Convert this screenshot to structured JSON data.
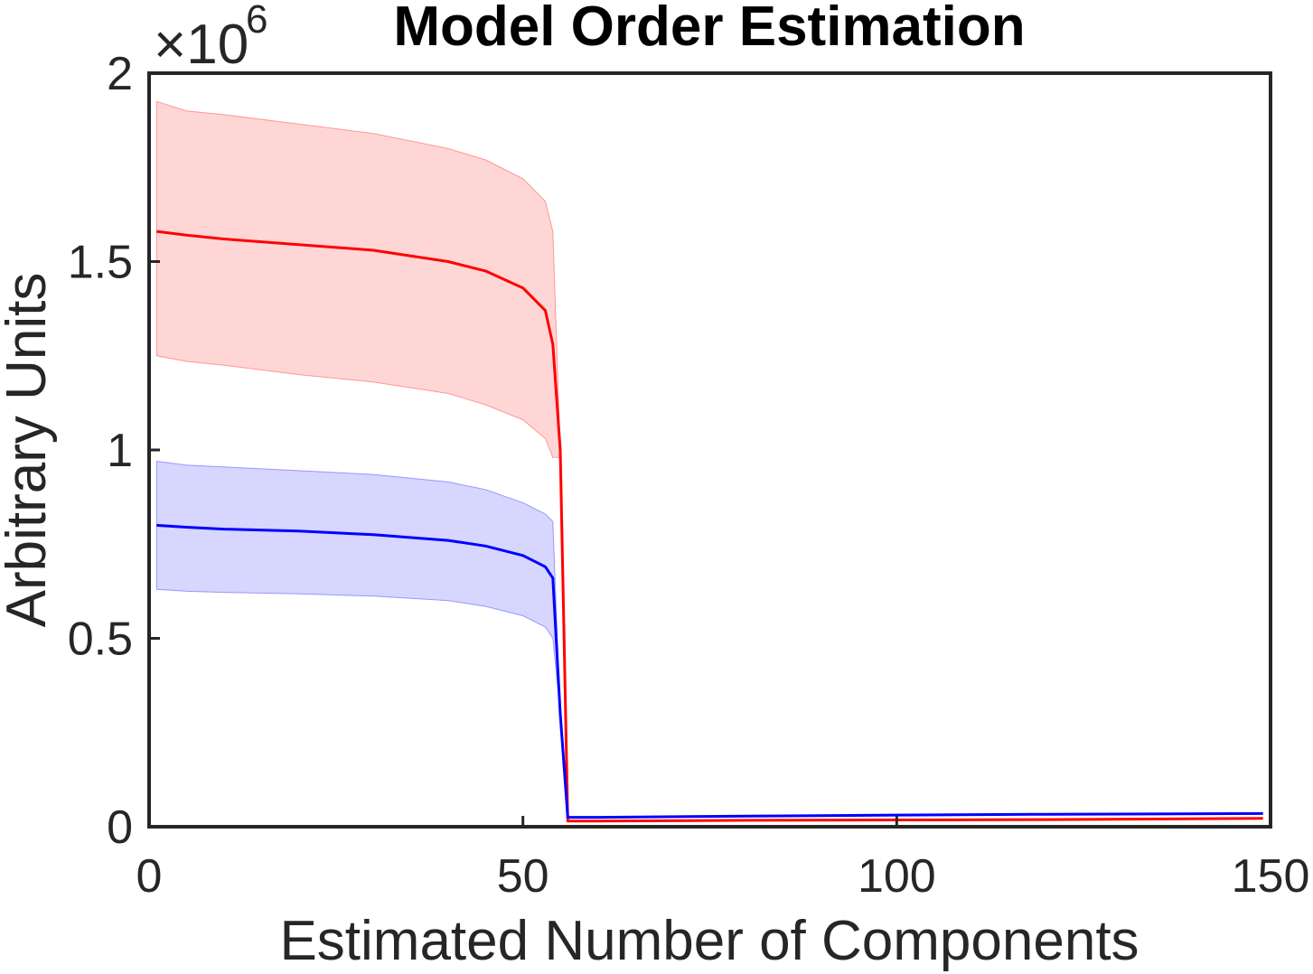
{
  "chart_data": {
    "type": "line",
    "title": "Model Order Estimation",
    "xlabel": "Estimated Number of Components",
    "ylabel": "Arbitrary Units",
    "xlim": [
      0,
      150
    ],
    "ylim": [
      0,
      2000000
    ],
    "x_ticks": [
      0,
      50,
      100,
      150
    ],
    "x_tick_labels": [
      "0",
      "50",
      "100",
      "150"
    ],
    "y_ticks": [
      0,
      500000,
      1000000,
      1500000,
      2000000
    ],
    "y_tick_labels": [
      "0",
      "0.5",
      "1",
      "1.5",
      "2"
    ],
    "y_exponent": {
      "base": "×10",
      "power": "6"
    },
    "grid": false,
    "series": [
      {
        "name": "red",
        "color": "#ff0000",
        "band_color": "#ffd6d6",
        "x": [
          1,
          5,
          10,
          20,
          30,
          40,
          45,
          50,
          53,
          54,
          55,
          56,
          60,
          80,
          100,
          120,
          149
        ],
        "mean": [
          1580000,
          1570000,
          1560000,
          1545000,
          1530000,
          1500000,
          1475000,
          1430000,
          1370000,
          1280000,
          1000000,
          15000,
          15000,
          17000,
          18000,
          19000,
          22000
        ],
        "upper": [
          1925000,
          1900000,
          1890000,
          1865000,
          1840000,
          1800000,
          1770000,
          1720000,
          1660000,
          1580000,
          1000000,
          15000,
          15000,
          17000,
          18000,
          19000,
          22000
        ],
        "lower": [
          1250000,
          1235000,
          1225000,
          1200000,
          1180000,
          1150000,
          1120000,
          1080000,
          1030000,
          980000,
          980000,
          15000,
          15000,
          17000,
          18000,
          19000,
          22000
        ]
      },
      {
        "name": "blue",
        "color": "#0000ff",
        "band_color": "#d6d6ff",
        "x": [
          1,
          5,
          10,
          20,
          30,
          40,
          45,
          50,
          53,
          54,
          55,
          56,
          60,
          80,
          100,
          120,
          149
        ],
        "mean": [
          800000,
          795000,
          790000,
          785000,
          775000,
          760000,
          745000,
          720000,
          690000,
          660000,
          300000,
          25000,
          25000,
          28000,
          31000,
          33000,
          35000
        ],
        "upper": [
          970000,
          960000,
          955000,
          945000,
          935000,
          915000,
          895000,
          860000,
          830000,
          810000,
          300000,
          25000,
          25000,
          28000,
          31000,
          33000,
          35000
        ],
        "lower": [
          630000,
          625000,
          622000,
          618000,
          612000,
          600000,
          585000,
          560000,
          530000,
          500000,
          300000,
          25000,
          25000,
          28000,
          31000,
          33000,
          35000
        ]
      }
    ]
  }
}
